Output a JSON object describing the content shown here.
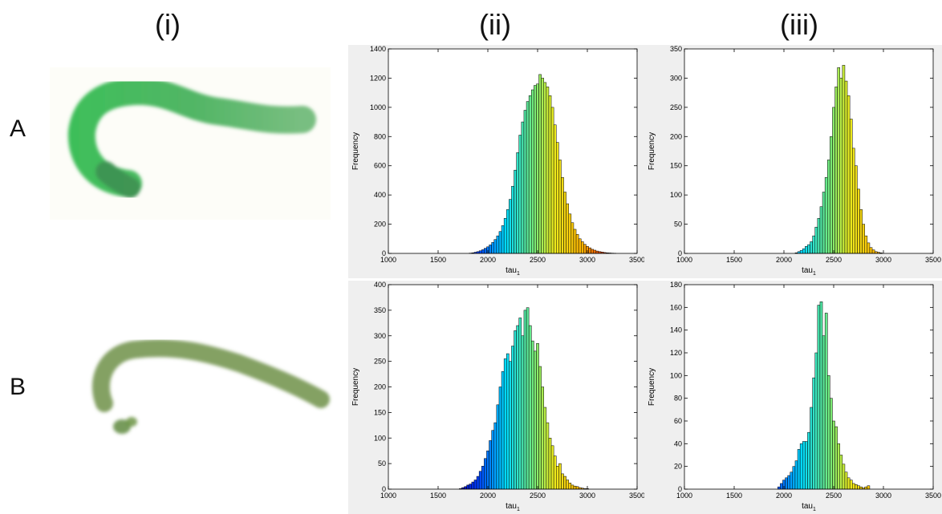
{
  "column_labels": [
    "(i)",
    "(ii)",
    "(iii)"
  ],
  "row_labels": [
    "A",
    "B"
  ],
  "chart_data": [
    {
      "panel": "A (ii)",
      "type": "bar",
      "xlabel": "tau",
      "xlabel_sub": "1",
      "ylabel": "Frequency",
      "xlim": [
        1000,
        3500
      ],
      "ylim": [
        0,
        1400
      ],
      "xticks": [
        1000,
        1500,
        2000,
        2500,
        3000,
        3500
      ],
      "yticks": [
        0,
        200,
        400,
        600,
        800,
        1000,
        1200,
        1400
      ],
      "bin_width": 25,
      "x": [
        1825,
        1850,
        1875,
        1900,
        1925,
        1950,
        1975,
        2000,
        2025,
        2050,
        2075,
        2100,
        2125,
        2150,
        2175,
        2200,
        2225,
        2250,
        2275,
        2300,
        2325,
        2350,
        2375,
        2400,
        2425,
        2450,
        2475,
        2500,
        2525,
        2550,
        2575,
        2600,
        2625,
        2650,
        2675,
        2700,
        2725,
        2750,
        2775,
        2800,
        2825,
        2850,
        2875,
        2900,
        2925,
        2950,
        2975,
        3000,
        3025,
        3050,
        3075,
        3100,
        3125,
        3150,
        3175,
        3200,
        3225,
        3250,
        3275
      ],
      "values": [
        2,
        4,
        8,
        12,
        18,
        25,
        35,
        45,
        58,
        75,
        95,
        120,
        150,
        190,
        240,
        300,
        370,
        460,
        570,
        690,
        810,
        900,
        980,
        1040,
        1080,
        1120,
        1150,
        1160,
        1225,
        1200,
        1170,
        1140,
        1080,
        1000,
        880,
        760,
        640,
        520,
        420,
        340,
        270,
        210,
        165,
        130,
        100,
        80,
        62,
        48,
        38,
        28,
        22,
        16,
        12,
        9,
        6,
        4,
        3,
        2,
        1
      ]
    },
    {
      "panel": "A (iii)",
      "type": "bar",
      "xlabel": "tau",
      "xlabel_sub": "1",
      "ylabel": "Frequency",
      "xlim": [
        1000,
        3500
      ],
      "ylim": [
        0,
        350
      ],
      "xticks": [
        1000,
        1500,
        2000,
        2500,
        3000,
        3500
      ],
      "yticks": [
        0,
        50,
        100,
        150,
        200,
        250,
        300,
        350
      ],
      "bin_width": 25,
      "x": [
        2125,
        2150,
        2175,
        2200,
        2225,
        2250,
        2275,
        2300,
        2325,
        2350,
        2375,
        2400,
        2425,
        2450,
        2475,
        2500,
        2525,
        2550,
        2575,
        2600,
        2625,
        2650,
        2675,
        2700,
        2725,
        2750,
        2775,
        2800,
        2825,
        2850,
        2875,
        2900,
        2925,
        2950,
        2975
      ],
      "values": [
        1,
        3,
        5,
        8,
        12,
        15,
        20,
        30,
        45,
        60,
        80,
        105,
        130,
        160,
        200,
        250,
        285,
        318,
        300,
        322,
        295,
        270,
        230,
        180,
        150,
        110,
        75,
        50,
        30,
        18,
        10,
        6,
        3,
        2,
        1
      ]
    },
    {
      "panel": "B (ii)",
      "type": "bar",
      "xlabel": "tau",
      "xlabel_sub": "1",
      "ylabel": "Frequency",
      "xlim": [
        1000,
        3500
      ],
      "ylim": [
        0,
        400
      ],
      "xticks": [
        1000,
        1500,
        2000,
        2500,
        3000,
        3500
      ],
      "yticks": [
        0,
        50,
        100,
        150,
        200,
        250,
        300,
        350,
        400
      ],
      "bin_width": 25,
      "x": [
        1725,
        1750,
        1775,
        1800,
        1825,
        1850,
        1875,
        1900,
        1925,
        1950,
        1975,
        2000,
        2025,
        2050,
        2075,
        2100,
        2125,
        2150,
        2175,
        2200,
        2225,
        2250,
        2275,
        2300,
        2325,
        2350,
        2375,
        2400,
        2425,
        2450,
        2475,
        2500,
        2525,
        2550,
        2575,
        2600,
        2625,
        2650,
        2675,
        2700,
        2725,
        2750,
        2775,
        2800,
        2825,
        2850,
        2875,
        2900,
        2925,
        2950,
        2975,
        3000
      ],
      "values": [
        1,
        3,
        5,
        8,
        10,
        14,
        18,
        25,
        35,
        45,
        60,
        75,
        95,
        115,
        130,
        165,
        200,
        230,
        255,
        265,
        250,
        280,
        310,
        320,
        335,
        300,
        350,
        355,
        320,
        290,
        270,
        285,
        240,
        200,
        160,
        130,
        100,
        85,
        65,
        45,
        50,
        30,
        25,
        18,
        12,
        8,
        6,
        5,
        3,
        2,
        1,
        1
      ]
    },
    {
      "panel": "B (iii)",
      "type": "bar",
      "xlabel": "tau",
      "xlabel_sub": "1",
      "ylabel": "Frequency",
      "xlim": [
        1000,
        3500
      ],
      "ylim": [
        0,
        180
      ],
      "xticks": [
        1000,
        1500,
        2000,
        2500,
        3000,
        3500
      ],
      "yticks": [
        0,
        20,
        40,
        60,
        80,
        100,
        120,
        140,
        160,
        180
      ],
      "bin_width": 25,
      "x": [
        1950,
        1975,
        2000,
        2025,
        2050,
        2075,
        2100,
        2125,
        2150,
        2175,
        2200,
        2225,
        2250,
        2275,
        2300,
        2325,
        2350,
        2375,
        2400,
        2425,
        2450,
        2475,
        2500,
        2525,
        2550,
        2575,
        2600,
        2625,
        2650,
        2675,
        2700,
        2725,
        2750,
        2775,
        2800,
        2825,
        2850
      ],
      "values": [
        2,
        5,
        8,
        10,
        12,
        15,
        20,
        25,
        35,
        40,
        42,
        42,
        50,
        72,
        98,
        120,
        162,
        165,
        135,
        155,
        100,
        80,
        60,
        55,
        40,
        30,
        22,
        15,
        10,
        8,
        5,
        4,
        3,
        2,
        1,
        2,
        3
      ]
    }
  ]
}
